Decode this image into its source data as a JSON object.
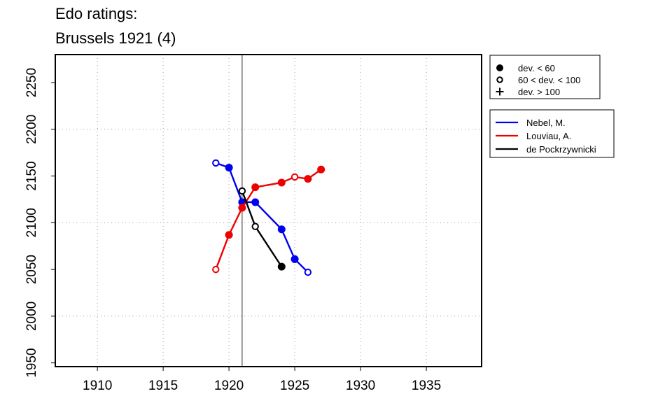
{
  "chart_data": {
    "type": "line",
    "title_lines": [
      "Edo ratings:",
      "Brussels 1921 (4)"
    ],
    "xlim": [
      1906.8,
      1939.2
    ],
    "ylim": [
      1946,
      2280
    ],
    "x_ticks": [
      1910,
      1915,
      1920,
      1925,
      1930,
      1935
    ],
    "y_ticks": [
      1950,
      2000,
      2050,
      2100,
      2150,
      2200,
      2250
    ],
    "x_tick_labels": [
      "1910",
      "1915",
      "1920",
      "1925",
      "1930",
      "1935"
    ],
    "y_tick_labels": [
      "1950",
      "2000",
      "2050",
      "2100",
      "2150",
      "2200",
      "2250"
    ],
    "grid": true,
    "event_line_x": 1921,
    "marker_legend": [
      {
        "label": "dev. < 60",
        "symbol": "filled-circle"
      },
      {
        "label": "60 < dev. < 100",
        "symbol": "open-circle"
      },
      {
        "label": "dev. > 100",
        "symbol": "plus"
      }
    ],
    "series": [
      {
        "name": "Nebel, M.",
        "color": "#0000ee",
        "points": [
          {
            "x": 1919,
            "y": 2164,
            "marker": "open-circle"
          },
          {
            "x": 1920,
            "y": 2159,
            "marker": "filled-circle"
          },
          {
            "x": 1921,
            "y": 2122,
            "marker": "filled-circle"
          },
          {
            "x": 1922,
            "y": 2122,
            "marker": "filled-circle"
          },
          {
            "x": 1924,
            "y": 2093,
            "marker": "filled-circle"
          },
          {
            "x": 1925,
            "y": 2061,
            "marker": "filled-circle"
          },
          {
            "x": 1926,
            "y": 2047,
            "marker": "open-circle"
          }
        ]
      },
      {
        "name": "Louviau, A.",
        "color": "#ee0000",
        "points": [
          {
            "x": 1919,
            "y": 2050,
            "marker": "open-circle"
          },
          {
            "x": 1920,
            "y": 2087,
            "marker": "filled-circle"
          },
          {
            "x": 1921,
            "y": 2116,
            "marker": "filled-circle"
          },
          {
            "x": 1922,
            "y": 2138,
            "marker": "filled-circle"
          },
          {
            "x": 1924,
            "y": 2143,
            "marker": "filled-circle"
          },
          {
            "x": 1925,
            "y": 2149,
            "marker": "open-circle"
          },
          {
            "x": 1926,
            "y": 2147,
            "marker": "filled-circle"
          },
          {
            "x": 1927,
            "y": 2157,
            "marker": "filled-circle"
          }
        ]
      },
      {
        "name": "de Pockrzywnicki",
        "color": "#000000",
        "points": [
          {
            "x": 1921,
            "y": 2134,
            "marker": "open-circle"
          },
          {
            "x": 1922,
            "y": 2096,
            "marker": "open-circle"
          },
          {
            "x": 1924,
            "y": 2053,
            "marker": "filled-circle"
          }
        ]
      }
    ]
  }
}
